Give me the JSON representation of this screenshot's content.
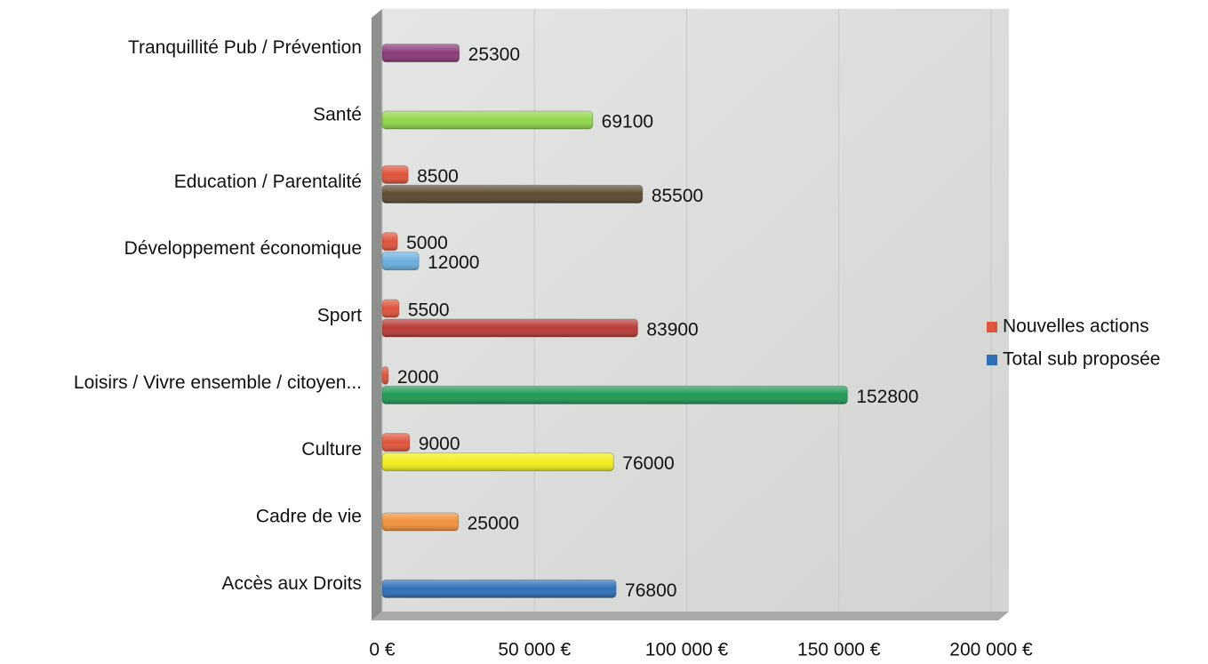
{
  "chart_data": {
    "type": "bar",
    "orientation": "horizontal",
    "categories": [
      "Accès aux Droits",
      "Cadre de vie",
      "Culture",
      "Loisirs / Vivre ensemble / citoyen...",
      "Sport",
      "Développement économique",
      "Education / Parentalité",
      "Santé",
      "Tranquillité Pub / Prévention"
    ],
    "series": [
      {
        "name": "Nouvelles actions",
        "color": "#e0533a",
        "values": [
          null,
          null,
          9000,
          2000,
          5500,
          5000,
          8500,
          null,
          null
        ]
      },
      {
        "name": "Total sub proposée",
        "color": "#2f6fb8",
        "colors": [
          "#2f6fb8",
          "#f0903a",
          "#f2ee1c",
          "#1f9a55",
          "#b83a35",
          "#6cb0e0",
          "#5b4b30",
          "#8fd64a",
          "#8a3a7a"
        ],
        "values": [
          76800,
          25000,
          76000,
          152800,
          83900,
          12000,
          85500,
          69100,
          25300
        ]
      }
    ],
    "xlim": [
      0,
      200000
    ],
    "xticks": [
      {
        "value": 0,
        "label": "0 €"
      },
      {
        "value": 50000,
        "label": "50 000 €"
      },
      {
        "value": 100000,
        "label": "100 000 €"
      },
      {
        "value": 150000,
        "label": "150 000 €"
      },
      {
        "value": 200000,
        "label": "200 000 €"
      }
    ],
    "grid": true,
    "legend": "right"
  }
}
